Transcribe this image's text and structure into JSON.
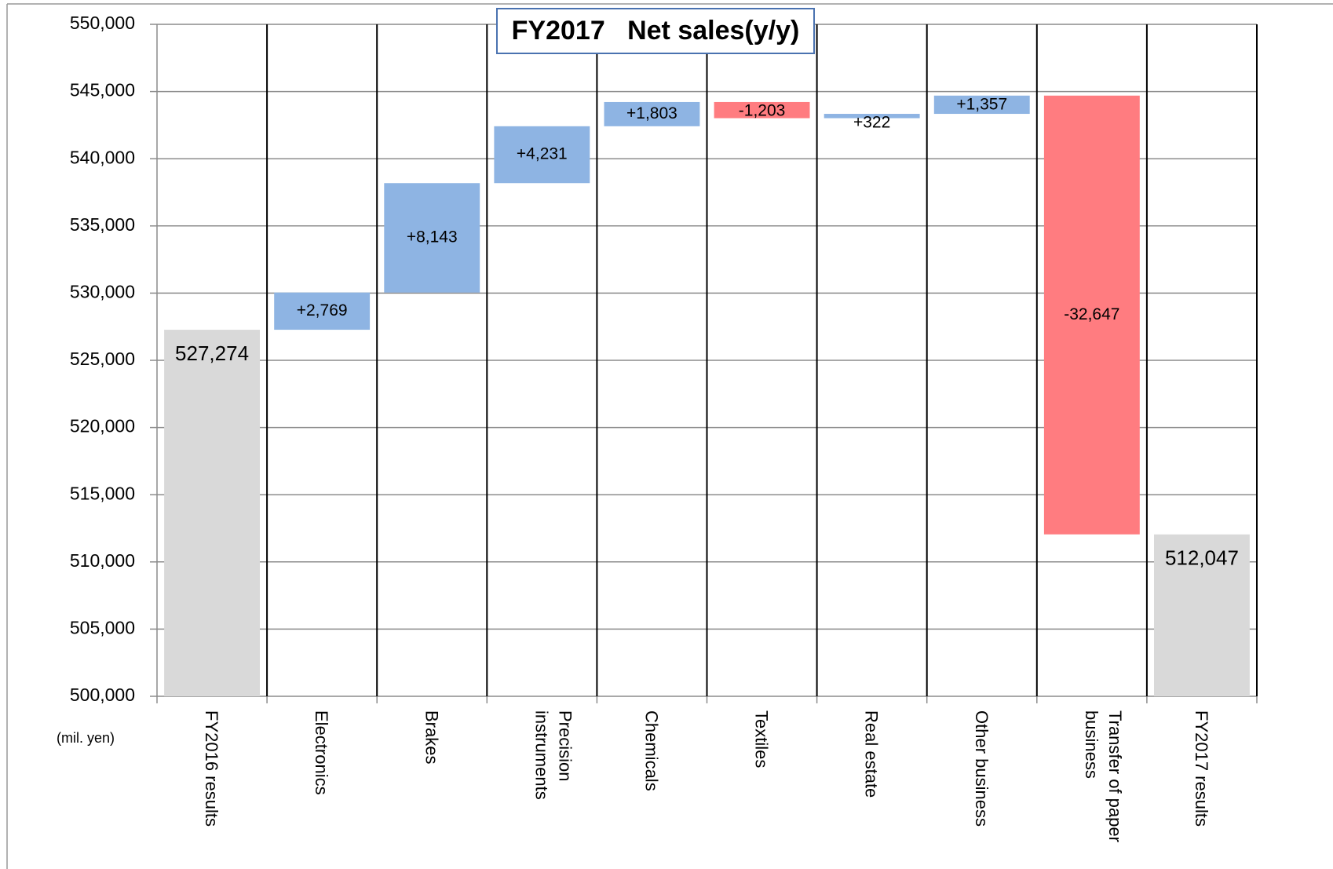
{
  "chart_data": {
    "type": "waterfall",
    "title": "FY2017   Net sales(y/y)",
    "annotation": "(mil. yen)",
    "categories": [
      "FY2016 results",
      "Electronics",
      "Brakes",
      "Precision instruments",
      "Chemicals",
      "Textiles",
      "Real estate",
      "Other business",
      "Transfer of paper business",
      "FY2017 results"
    ],
    "values": [
      527274,
      2769,
      8143,
      4231,
      1803,
      -1203,
      322,
      1357,
      -32647,
      512047
    ],
    "value_labels": [
      "527,274",
      "+2,769",
      "+8,143",
      "+4,231",
      "+1,803",
      "-1,203",
      "+322",
      "+1,357",
      "-32,647",
      "512,047"
    ],
    "measure": [
      "absolute",
      "relative",
      "relative",
      "relative",
      "relative",
      "relative",
      "relative",
      "relative",
      "relative",
      "absolute"
    ],
    "colors": {
      "total": "#d9d9d9",
      "increase": "#8eb4e3",
      "decrease": "#ff7c80"
    },
    "ylim": [
      500000,
      550000
    ],
    "yticks": [
      {
        "value": 500000,
        "label": "500,000"
      },
      {
        "value": 505000,
        "label": "505,000"
      },
      {
        "value": 510000,
        "label": "510,000"
      },
      {
        "value": 515000,
        "label": "515,000"
      },
      {
        "value": 520000,
        "label": "520,000"
      },
      {
        "value": 525000,
        "label": "525,000"
      },
      {
        "value": 530000,
        "label": "530,000"
      },
      {
        "value": 535000,
        "label": "535,000"
      },
      {
        "value": 540000,
        "label": "540,000"
      },
      {
        "value": 545000,
        "label": "545,000"
      },
      {
        "value": 550000,
        "label": "550,000"
      }
    ],
    "grid": true
  }
}
